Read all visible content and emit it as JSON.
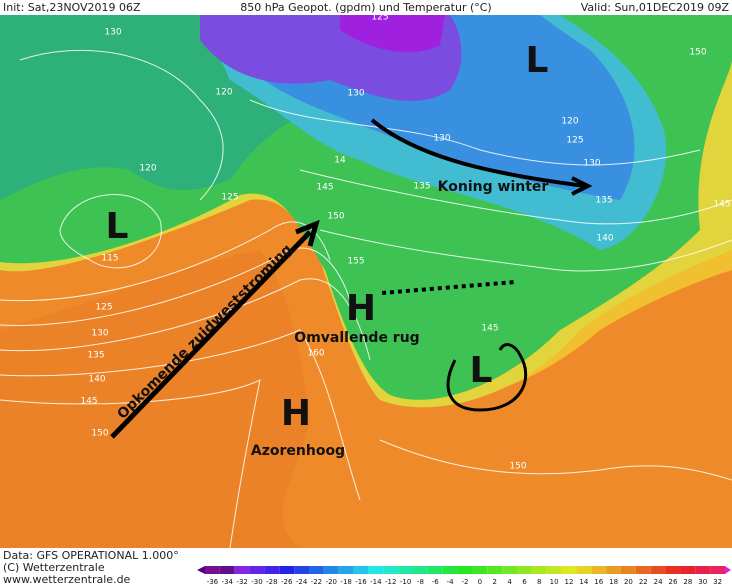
{
  "header": {
    "init": "Init: Sat,23NOV2019 06Z",
    "title": "850 hPa Geopot. (gpdm) und Temperatur (°C)",
    "valid": "Valid: Sun,01DEC2019 09Z"
  },
  "annotations": {
    "pressure_systems": [
      "L",
      "L",
      "H",
      "H",
      "L"
    ],
    "arrow_1": "Opkomende zuidweststroming",
    "arrow_2": "Koning winter",
    "ridge": "Omvallende rug",
    "high": "Azorenhoog"
  },
  "isoline_labels": [
    130,
    120,
    120,
    125,
    115,
    125,
    130,
    135,
    140,
    145,
    150,
    160,
    155,
    150,
    145,
    14,
    130,
    130,
    130,
    125,
    120,
    135,
    135,
    140,
    145,
    150,
    145,
    150,
    125
  ],
  "footer": {
    "data": "Data: GFS OPERATIONAL 1.000°",
    "copyright": "(C) Wetterzentrale",
    "url": "www.wetterzentrale.de"
  },
  "color_scale": [
    -36,
    -34,
    -32,
    -30,
    -28,
    -26,
    -24,
    -22,
    -20,
    -18,
    -16,
    -14,
    -12,
    -10,
    -8,
    -6,
    -4,
    -2,
    0,
    2,
    4,
    6,
    8,
    10,
    12,
    14,
    16,
    18,
    20,
    22,
    24,
    26,
    28,
    30,
    32
  ]
}
